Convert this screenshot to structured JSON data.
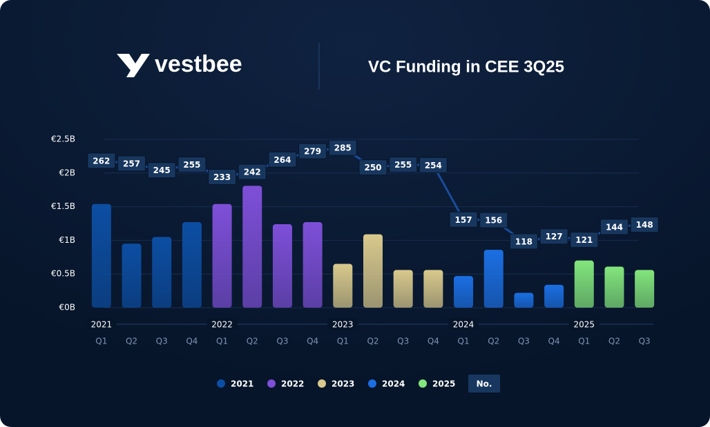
{
  "brand": "vestbee",
  "chart_data": {
    "type": "bar",
    "title": "VC Funding in CEE 3Q25",
    "categories": [
      "Q1",
      "Q2",
      "Q3",
      "Q4",
      "Q1",
      "Q2",
      "Q3",
      "Q4",
      "Q1",
      "Q2",
      "Q3",
      "Q4",
      "Q1",
      "Q2",
      "Q3",
      "Q4",
      "Q1",
      "Q2",
      "Q3"
    ],
    "ylim": [
      0,
      2.5
    ],
    "yticks": [
      {
        "value": 0,
        "label": "€0B"
      },
      {
        "value": 0.5,
        "label": "€0.5B"
      },
      {
        "value": 1,
        "label": "€1B"
      },
      {
        "value": 1.5,
        "label": "€1.5B"
      },
      {
        "value": 2,
        "label": "€2B"
      },
      {
        "value": 2.5,
        "label": "€2.5B"
      }
    ],
    "y2lim": [
      0,
      300
    ],
    "grid": true,
    "series": [
      {
        "name": "2021",
        "color": "#0c4ea3",
        "values": [
          1.54,
          0.95,
          1.05,
          1.27,
          null,
          null,
          null,
          null,
          null,
          null,
          null,
          null,
          null,
          null,
          null,
          null,
          null,
          null,
          null
        ]
      },
      {
        "name": "2022",
        "color": "#7e4fd8",
        "values": [
          null,
          null,
          null,
          null,
          1.54,
          1.81,
          1.24,
          1.27,
          null,
          null,
          null,
          null,
          null,
          null,
          null,
          null,
          null,
          null,
          null
        ]
      },
      {
        "name": "2023",
        "color": "#d9c98c",
        "values": [
          null,
          null,
          null,
          null,
          null,
          null,
          null,
          null,
          0.65,
          1.09,
          0.56,
          0.56,
          null,
          null,
          null,
          null,
          null,
          null,
          null
        ]
      },
      {
        "name": "2024",
        "color": "#1b6fe3",
        "values": [
          null,
          null,
          null,
          null,
          null,
          null,
          null,
          null,
          null,
          null,
          null,
          null,
          0.47,
          0.86,
          0.22,
          0.34,
          null,
          null,
          null
        ]
      },
      {
        "name": "2025",
        "color": "#83e57c",
        "values": [
          null,
          null,
          null,
          null,
          null,
          null,
          null,
          null,
          null,
          null,
          null,
          null,
          null,
          null,
          null,
          null,
          0.7,
          0.61,
          0.56
        ]
      },
      {
        "name": "No.",
        "type": "line",
        "axis": "y2",
        "color": "#1a4c9c",
        "values": [
          262,
          257,
          245,
          255,
          233,
          242,
          264,
          279,
          285,
          250,
          255,
          254,
          157,
          156,
          118,
          127,
          121,
          144,
          148
        ]
      }
    ]
  }
}
